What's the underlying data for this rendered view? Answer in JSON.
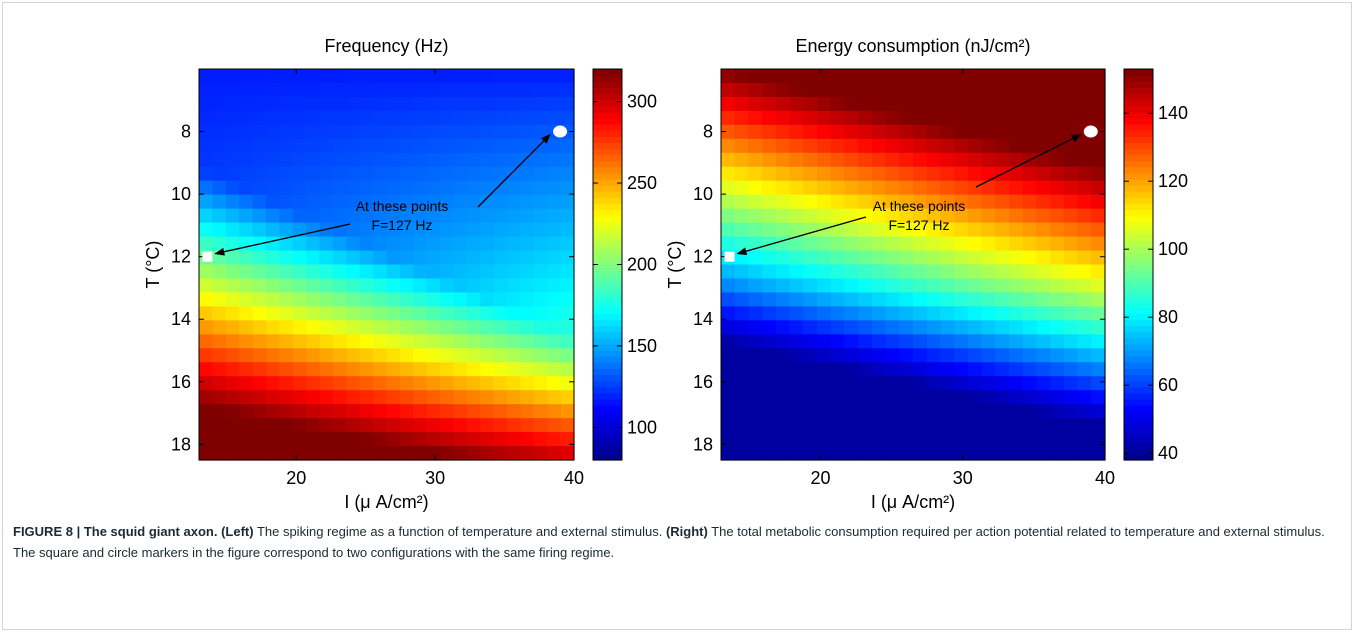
{
  "colors": {
    "colormap": [
      "#00008f",
      "#0000ff",
      "#00ffff",
      "#ffff00",
      "#ff0000",
      "#800000"
    ],
    "marker": "#ffffff",
    "arrow": "#000000",
    "frame_border": "#cfd6da",
    "caption_text": "#1b2a33"
  },
  "chart_data": [
    {
      "type": "heatmap",
      "title": "Frequency (Hz)",
      "xlabel": "I (μ A/cm²)",
      "ylabel": "T (°C)",
      "x_ticks": [
        "20",
        "30",
        "40"
      ],
      "y_ticks": [
        "8",
        "10",
        "12",
        "14",
        "16",
        "18"
      ],
      "xlim": [
        13,
        40
      ],
      "ylim": [
        18.5,
        6.0
      ],
      "y_reversed": true,
      "grid": 28,
      "colorbar": {
        "min": 80,
        "max": 320,
        "ticks": [
          "100",
          "150",
          "200",
          "250",
          "300"
        ]
      },
      "colorbar_ticks_values": [
        100,
        150,
        200,
        250,
        300
      ],
      "model": "frequency",
      "annotation": {
        "lines": [
          "At these points",
          "F=127 Hz"
        ]
      },
      "markers": [
        {
          "shape": "square",
          "x": 13.6,
          "y": 12.0,
          "value_hz": 127
        },
        {
          "shape": "circle",
          "x": 39.0,
          "y": 8.0,
          "value_hz": 127
        }
      ]
    },
    {
      "type": "heatmap",
      "title": "Energy consumption (nJ/cm²)",
      "xlabel": "I (μ A/cm²)",
      "ylabel": "T (°C)",
      "x_ticks": [
        "20",
        "30",
        "40"
      ],
      "y_ticks": [
        "8",
        "10",
        "12",
        "14",
        "16",
        "18"
      ],
      "xlim": [
        13,
        40
      ],
      "ylim": [
        18.5,
        6.0
      ],
      "y_reversed": true,
      "grid": 28,
      "colorbar": {
        "min": 38,
        "max": 153,
        "ticks": [
          "40",
          "60",
          "80",
          "100",
          "120",
          "140"
        ]
      },
      "colorbar_ticks_values": [
        40,
        60,
        80,
        100,
        120,
        140
      ],
      "model": "energy",
      "annotation": {
        "lines": [
          "At these points",
          "F=127 Hz"
        ]
      },
      "markers": [
        {
          "shape": "square",
          "x": 13.6,
          "y": 12.0
        },
        {
          "shape": "circle",
          "x": 39.0,
          "y": 8.0
        }
      ]
    }
  ],
  "caption": {
    "figure_label": "FIGURE 8 | The squid giant axon.",
    "left_label": "(Left)",
    "left_text": " The spiking regime as a function of temperature and external stimulus. ",
    "right_label": "(Right)",
    "right_text": " The total metabolic consumption required per action potential related to temperature and external stimulus. The square and circle markers in the figure correspond to two configurations with the same firing regime."
  }
}
